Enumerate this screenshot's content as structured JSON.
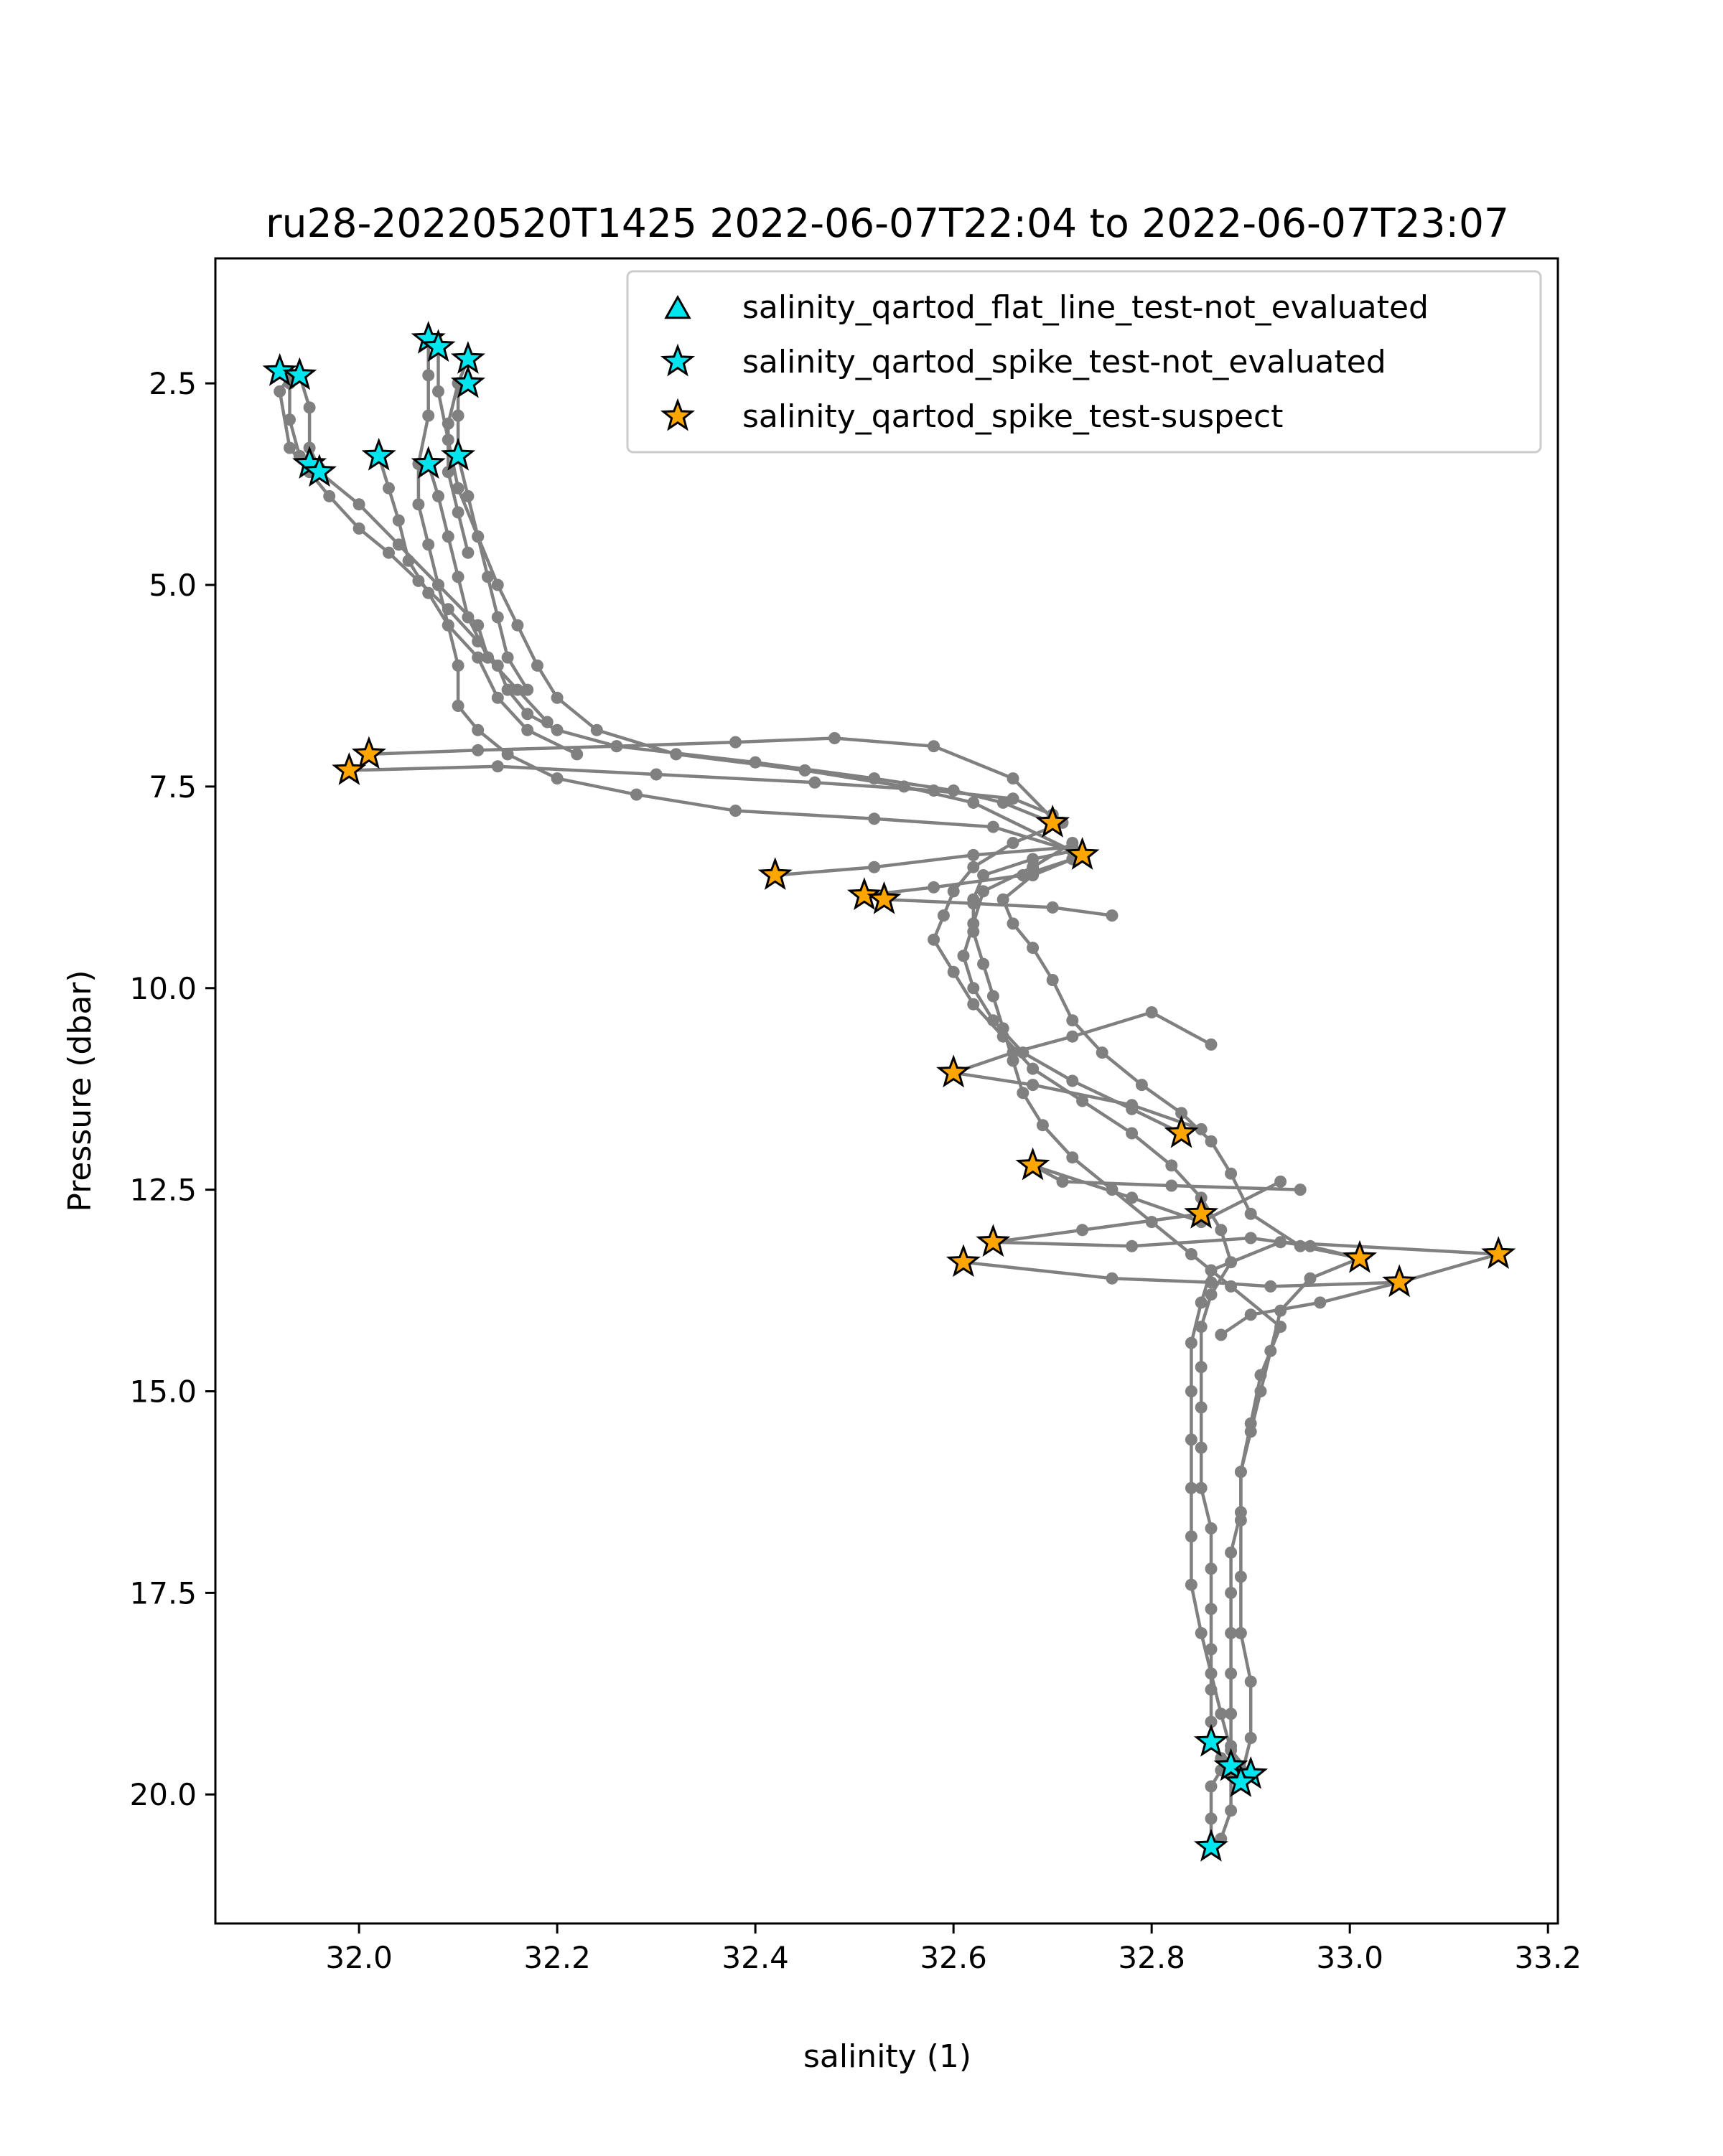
{
  "chart_data": {
    "type": "scatter",
    "title": "ru28-20220520T1425 2022-06-07T22:04 to 2022-06-07T23:07",
    "xlabel": "salinity (1)",
    "ylabel": "Pressure (dbar)",
    "xlim": [
      31.855,
      33.21
    ],
    "ylim": [
      21.6,
      0.95
    ],
    "y_inverted": true,
    "grid": false,
    "legend_position": "upper right",
    "x_ticks": [
      32.0,
      32.2,
      32.4,
      32.6,
      32.8,
      33.0,
      33.2
    ],
    "x_tick_labels": [
      "32.0",
      "32.2",
      "32.4",
      "32.6",
      "32.8",
      "33.0",
      "33.2"
    ],
    "y_ticks": [
      2.5,
      5.0,
      7.5,
      10.0,
      12.5,
      15.0,
      17.5,
      20.0
    ],
    "y_tick_labels": [
      "2.5",
      "5.0",
      "7.5",
      "10.0",
      "12.5",
      "15.0",
      "17.5",
      "20.0"
    ],
    "profile_color": "#808080",
    "profiles": [
      [
        [
          31.93,
          2.4
        ],
        [
          31.92,
          2.6
        ],
        [
          31.93,
          3.3
        ],
        [
          31.95,
          3.6
        ],
        [
          31.97,
          3.9
        ],
        [
          32.0,
          4.3
        ],
        [
          32.03,
          4.6
        ],
        [
          32.06,
          4.95
        ],
        [
          32.09,
          5.3
        ],
        [
          32.12,
          5.7
        ],
        [
          32.14,
          6.0
        ],
        [
          32.15,
          6.3
        ],
        [
          32.17,
          6.6
        ],
        [
          32.2,
          6.8
        ],
        [
          32.26,
          7.0
        ],
        [
          32.4,
          7.2
        ],
        [
          32.52,
          7.4
        ],
        [
          32.6,
          7.55
        ],
        [
          32.65,
          7.7
        ],
        [
          32.7,
          7.95
        ]
      ],
      [
        [
          32.71,
          7.95
        ],
        [
          32.66,
          8.2
        ],
        [
          32.62,
          8.5
        ],
        [
          32.6,
          8.8
        ],
        [
          32.59,
          9.1
        ],
        [
          32.58,
          9.4
        ],
        [
          32.6,
          9.8
        ],
        [
          32.62,
          10.2
        ],
        [
          32.65,
          10.6
        ],
        [
          32.68,
          11.0
        ],
        [
          32.73,
          11.4
        ],
        [
          32.78,
          11.8
        ],
        [
          32.82,
          12.2
        ],
        [
          32.85,
          12.6
        ],
        [
          32.87,
          13.0
        ],
        [
          32.88,
          13.4
        ],
        [
          32.86,
          13.8
        ],
        [
          32.85,
          14.2
        ],
        [
          32.85,
          14.7
        ],
        [
          32.85,
          15.2
        ],
        [
          32.85,
          15.7
        ],
        [
          32.85,
          16.2
        ],
        [
          32.86,
          16.7
        ],
        [
          32.86,
          17.2
        ],
        [
          32.86,
          17.7
        ],
        [
          32.86,
          18.2
        ],
        [
          32.86,
          18.7
        ],
        [
          32.86,
          19.1
        ],
        [
          32.86,
          19.35
        ]
      ],
      [
        [
          32.89,
          19.8
        ],
        [
          32.9,
          19.3
        ],
        [
          32.9,
          18.6
        ],
        [
          32.89,
          18.0
        ],
        [
          32.89,
          17.3
        ],
        [
          32.89,
          16.6
        ],
        [
          32.89,
          16.0
        ],
        [
          32.9,
          15.4
        ],
        [
          32.91,
          14.8
        ],
        [
          32.93,
          14.2
        ],
        [
          32.88,
          13.7
        ],
        [
          32.84,
          13.3
        ],
        [
          32.8,
          12.9
        ],
        [
          32.76,
          12.5
        ],
        [
          32.72,
          12.1
        ],
        [
          32.69,
          11.7
        ],
        [
          32.67,
          11.3
        ],
        [
          32.66,
          10.9
        ],
        [
          32.65,
          10.5
        ],
        [
          32.64,
          10.1
        ],
        [
          32.63,
          9.7
        ],
        [
          32.62,
          9.3
        ],
        [
          32.62,
          8.9
        ],
        [
          32.63,
          8.6
        ],
        [
          32.68,
          8.4
        ],
        [
          32.72,
          8.3
        ],
        [
          32.64,
          8.0
        ],
        [
          32.52,
          7.9
        ],
        [
          32.38,
          7.8
        ],
        [
          32.28,
          7.6
        ],
        [
          32.2,
          7.4
        ],
        [
          32.15,
          7.1
        ],
        [
          32.12,
          6.8
        ],
        [
          32.1,
          6.5
        ],
        [
          32.1,
          6.0
        ],
        [
          32.09,
          5.5
        ],
        [
          32.08,
          5.0
        ],
        [
          32.07,
          4.5
        ],
        [
          32.06,
          4.0
        ],
        [
          32.06,
          3.5
        ],
        [
          32.07,
          2.9
        ],
        [
          32.07,
          2.4
        ],
        [
          32.07,
          1.95
        ]
      ],
      [
        [
          32.08,
          2.05
        ],
        [
          32.08,
          2.6
        ],
        [
          32.09,
          3.2
        ],
        [
          32.1,
          3.8
        ],
        [
          32.12,
          4.4
        ],
        [
          32.14,
          5.0
        ],
        [
          32.16,
          5.5
        ],
        [
          32.18,
          6.0
        ],
        [
          32.2,
          6.4
        ],
        [
          32.24,
          6.8
        ],
        [
          32.32,
          7.1
        ],
        [
          32.45,
          7.3
        ],
        [
          32.55,
          7.5
        ],
        [
          32.62,
          7.7
        ],
        [
          32.72,
          8.3
        ]
      ],
      [
        [
          32.73,
          8.35
        ],
        [
          32.68,
          8.6
        ],
        [
          32.65,
          8.9
        ],
        [
          32.66,
          9.2
        ],
        [
          32.68,
          9.5
        ],
        [
          32.7,
          9.9
        ],
        [
          32.72,
          10.4
        ],
        [
          32.75,
          10.8
        ],
        [
          32.79,
          11.2
        ],
        [
          32.83,
          11.55
        ],
        [
          32.86,
          11.9
        ],
        [
          32.88,
          12.3
        ],
        [
          32.9,
          12.8
        ],
        [
          32.95,
          13.2
        ],
        [
          33.01,
          13.35
        ]
      ],
      [
        [
          33.01,
          13.35
        ],
        [
          32.96,
          13.6
        ],
        [
          32.93,
          14.0
        ],
        [
          32.92,
          14.5
        ],
        [
          32.91,
          15.0
        ],
        [
          32.9,
          15.5
        ],
        [
          32.89,
          16.0
        ],
        [
          32.89,
          16.5
        ],
        [
          32.88,
          17.0
        ],
        [
          32.88,
          17.5
        ],
        [
          32.88,
          18.0
        ],
        [
          32.88,
          18.5
        ],
        [
          32.88,
          19.0
        ],
        [
          32.88,
          19.4
        ],
        [
          32.88,
          19.65
        ]
      ],
      [
        [
          32.9,
          19.75
        ],
        [
          32.88,
          19.45
        ],
        [
          32.87,
          19.0
        ],
        [
          32.86,
          18.5
        ],
        [
          32.85,
          18.0
        ],
        [
          32.84,
          17.4
        ],
        [
          32.84,
          16.8
        ],
        [
          32.84,
          16.2
        ],
        [
          32.84,
          15.6
        ],
        [
          32.84,
          15.0
        ],
        [
          32.84,
          14.4
        ],
        [
          32.85,
          13.9
        ],
        [
          32.86,
          13.5
        ],
        [
          32.93,
          13.15
        ],
        [
          33.15,
          13.3
        ]
      ],
      [
        [
          33.15,
          13.3
        ],
        [
          33.05,
          13.65
        ],
        [
          32.97,
          13.9
        ],
        [
          32.9,
          14.05
        ],
        [
          32.87,
          14.3
        ]
      ],
      [
        [
          32.95,
          12.5
        ],
        [
          32.82,
          12.45
        ],
        [
          32.71,
          12.4
        ],
        [
          32.68,
          12.2
        ]
      ],
      [
        [
          32.68,
          12.2
        ],
        [
          32.78,
          12.6
        ],
        [
          32.85,
          12.9
        ],
        [
          32.93,
          12.4
        ]
      ],
      [
        [
          32.85,
          12.8
        ],
        [
          32.73,
          13.0
        ],
        [
          32.64,
          13.15
        ]
      ],
      [
        [
          32.64,
          13.15
        ],
        [
          32.78,
          13.2
        ],
        [
          32.9,
          13.1
        ],
        [
          32.96,
          13.2
        ],
        [
          33.01,
          13.35
        ]
      ],
      [
        [
          32.61,
          13.4
        ],
        [
          32.76,
          13.6
        ],
        [
          32.86,
          13.65
        ],
        [
          32.92,
          13.7
        ],
        [
          33.05,
          13.65
        ]
      ],
      [
        [
          32.6,
          11.05
        ],
        [
          32.68,
          11.2
        ],
        [
          32.78,
          11.45
        ],
        [
          32.85,
          11.75
        ]
      ],
      [
        [
          32.83,
          11.8
        ],
        [
          32.78,
          11.5
        ],
        [
          32.72,
          11.15
        ],
        [
          32.67,
          10.8
        ],
        [
          32.64,
          10.4
        ],
        [
          32.62,
          10.0
        ],
        [
          32.61,
          9.6
        ],
        [
          32.62,
          9.2
        ],
        [
          32.63,
          8.8
        ],
        [
          32.68,
          8.5
        ],
        [
          32.72,
          8.2
        ]
      ],
      [
        [
          32.6,
          11.05
        ],
        [
          32.66,
          10.8
        ],
        [
          32.72,
          10.6
        ],
        [
          32.8,
          10.3
        ],
        [
          32.86,
          10.7
        ]
      ],
      [
        [
          32.42,
          8.6
        ],
        [
          32.52,
          8.5
        ],
        [
          32.62,
          8.35
        ],
        [
          32.72,
          8.25
        ]
      ],
      [
        [
          32.51,
          8.85
        ],
        [
          32.58,
          8.75
        ],
        [
          32.67,
          8.6
        ],
        [
          32.72,
          8.4
        ]
      ],
      [
        [
          32.53,
          8.9
        ],
        [
          32.62,
          8.95
        ],
        [
          32.7,
          9.0
        ],
        [
          32.76,
          9.1
        ]
      ],
      [
        [
          32.01,
          7.1
        ],
        [
          32.12,
          7.05
        ],
        [
          32.26,
          7.0
        ],
        [
          32.38,
          6.95
        ],
        [
          32.48,
          6.9
        ],
        [
          32.58,
          7.0
        ],
        [
          32.66,
          7.4
        ],
        [
          32.7,
          7.9
        ]
      ],
      [
        [
          31.99,
          7.3
        ],
        [
          32.14,
          7.25
        ],
        [
          32.3,
          7.35
        ],
        [
          32.46,
          7.45
        ],
        [
          32.58,
          7.55
        ],
        [
          32.66,
          7.65
        ],
        [
          32.7,
          7.85
        ]
      ],
      [
        [
          31.92,
          2.35
        ],
        [
          31.93,
          2.5
        ],
        [
          31.93,
          2.95
        ],
        [
          31.94,
          3.4
        ],
        [
          31.95,
          3.5
        ]
      ],
      [
        [
          31.94,
          2.4
        ],
        [
          31.95,
          2.8
        ],
        [
          31.95,
          3.3
        ],
        [
          31.96,
          3.55
        ]
      ],
      [
        [
          32.02,
          3.4
        ],
        [
          32.03,
          3.8
        ],
        [
          32.04,
          4.2
        ],
        [
          32.05,
          4.7
        ],
        [
          32.07,
          5.1
        ],
        [
          32.09,
          5.5
        ],
        [
          32.12,
          5.9
        ],
        [
          32.14,
          6.4
        ],
        [
          32.17,
          6.8
        ],
        [
          32.22,
          7.1
        ]
      ],
      [
        [
          32.07,
          3.5
        ],
        [
          32.08,
          3.9
        ],
        [
          32.09,
          4.4
        ],
        [
          32.1,
          4.9
        ],
        [
          32.11,
          5.4
        ],
        [
          32.13,
          5.9
        ],
        [
          32.16,
          6.3
        ],
        [
          32.19,
          6.7
        ]
      ],
      [
        [
          32.1,
          3.4
        ],
        [
          32.11,
          3.9
        ],
        [
          32.12,
          4.4
        ],
        [
          32.13,
          4.9
        ],
        [
          32.14,
          5.4
        ],
        [
          32.15,
          5.9
        ],
        [
          32.17,
          6.3
        ]
      ],
      [
        [
          32.11,
          2.2
        ],
        [
          32.1,
          2.5
        ],
        [
          32.1,
          2.9
        ],
        [
          32.1,
          3.4
        ]
      ],
      [
        [
          32.1,
          2.5
        ],
        [
          32.09,
          3.0
        ],
        [
          32.09,
          3.6
        ],
        [
          32.1,
          4.1
        ],
        [
          32.11,
          4.6
        ]
      ],
      [
        [
          31.96,
          3.6
        ],
        [
          32.0,
          4.0
        ],
        [
          32.04,
          4.5
        ],
        [
          32.08,
          5.0
        ],
        [
          32.12,
          5.5
        ],
        [
          32.13,
          5.9
        ]
      ],
      [
        [
          32.86,
          20.65
        ],
        [
          32.86,
          20.3
        ],
        [
          32.86,
          19.9
        ],
        [
          32.87,
          19.7
        ],
        [
          32.89,
          19.85
        ]
      ],
      [
        [
          32.88,
          19.6
        ],
        [
          32.88,
          20.2
        ],
        [
          32.87,
          20.55
        ]
      ],
      [
        [
          32.86,
          19.35
        ],
        [
          32.87,
          19.55
        ],
        [
          32.88,
          19.65
        ]
      ]
    ],
    "series": [
      {
        "name": "salinity_qartod_flat_line_test-not_evaluated",
        "marker": "triangle",
        "color": "#00e5ee",
        "points": []
      },
      {
        "name": "salinity_qartod_spike_test-not_evaluated",
        "marker": "star",
        "color": "#00e5ee",
        "points": [
          [
            32.07,
            1.95
          ],
          [
            32.08,
            2.05
          ],
          [
            32.11,
            2.2
          ],
          [
            32.11,
            2.5
          ],
          [
            31.92,
            2.35
          ],
          [
            31.94,
            2.4
          ],
          [
            32.02,
            3.4
          ],
          [
            32.07,
            3.5
          ],
          [
            32.1,
            3.4
          ],
          [
            31.95,
            3.5
          ],
          [
            31.96,
            3.6
          ],
          [
            32.86,
            19.35
          ],
          [
            32.88,
            19.65
          ],
          [
            32.9,
            19.75
          ],
          [
            32.89,
            19.85
          ],
          [
            32.86,
            20.65
          ]
        ]
      },
      {
        "name": "salinity_qartod_spike_test-suspect",
        "marker": "star",
        "color": "#ffa500",
        "points": [
          [
            32.7,
            7.95
          ],
          [
            32.73,
            8.35
          ],
          [
            32.01,
            7.1
          ],
          [
            31.99,
            7.3
          ],
          [
            32.42,
            8.6
          ],
          [
            32.51,
            8.85
          ],
          [
            32.53,
            8.9
          ],
          [
            32.6,
            11.05
          ],
          [
            32.83,
            11.8
          ],
          [
            32.68,
            12.2
          ],
          [
            32.85,
            12.8
          ],
          [
            32.64,
            13.15
          ],
          [
            32.61,
            13.4
          ],
          [
            33.01,
            13.35
          ],
          [
            33.05,
            13.65
          ],
          [
            33.15,
            13.3
          ]
        ]
      }
    ]
  }
}
